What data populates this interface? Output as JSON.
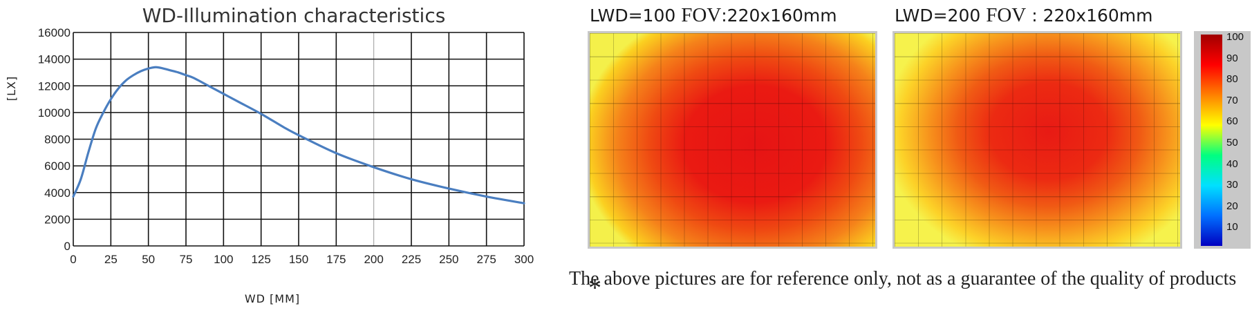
{
  "chart_data": {
    "type": "line",
    "title": "WD-Illumination characteristics",
    "xlabel": "WD [MM]",
    "ylabel": "[LX]",
    "xlim": [
      0,
      300
    ],
    "ylim": [
      0,
      16000
    ],
    "x_ticks": [
      "0",
      "25",
      "50",
      "75",
      "100",
      "125",
      "150",
      "175",
      "200",
      "225",
      "250",
      "275",
      "300"
    ],
    "y_ticks": [
      "0",
      "2000",
      "4000",
      "6000",
      "8000",
      "10000",
      "12000",
      "14000",
      "16000"
    ],
    "grid": true,
    "series": [
      {
        "color": "#4a7ec0",
        "points": [
          [
            0,
            3700
          ],
          [
            5,
            5000
          ],
          [
            10,
            7000
          ],
          [
            15,
            8800
          ],
          [
            20,
            10000
          ],
          [
            25,
            11000
          ],
          [
            30,
            11800
          ],
          [
            35,
            12400
          ],
          [
            40,
            12800
          ],
          [
            45,
            13100
          ],
          [
            50,
            13300
          ],
          [
            55,
            13400
          ],
          [
            60,
            13300
          ],
          [
            65,
            13150
          ],
          [
            70,
            13000
          ],
          [
            75,
            12800
          ],
          [
            80,
            12600
          ],
          [
            90,
            12000
          ],
          [
            100,
            11400
          ],
          [
            110,
            10800
          ],
          [
            125,
            9900
          ],
          [
            140,
            8900
          ],
          [
            150,
            8300
          ],
          [
            175,
            6950
          ],
          [
            200,
            5900
          ],
          [
            225,
            5000
          ],
          [
            250,
            4300
          ],
          [
            275,
            3700
          ],
          [
            300,
            3200
          ]
        ]
      }
    ]
  },
  "heatmaps": [
    {
      "label_lwd": "LWD=100",
      "label_fov": "FOV",
      "label_fov_value": ":220x160mm"
    },
    {
      "label_lwd": "LWD=200",
      "label_fov": "FOV",
      "label_fov_value": " : 220x160mm"
    }
  ],
  "colorbar": {
    "labels": [
      "100",
      "90",
      "80",
      "70",
      "60",
      "50",
      "40",
      "30",
      "20",
      "10"
    ],
    "colors": [
      "#a00000",
      "#ff0000",
      "#ff8000",
      "#ffff00",
      "#00ff80",
      "#00e0ff",
      "#0070ff",
      "#0000c0"
    ]
  },
  "footnote": {
    "star": "*",
    "text": "The above pictures are for reference only, not as a guarantee of the quality of products"
  }
}
